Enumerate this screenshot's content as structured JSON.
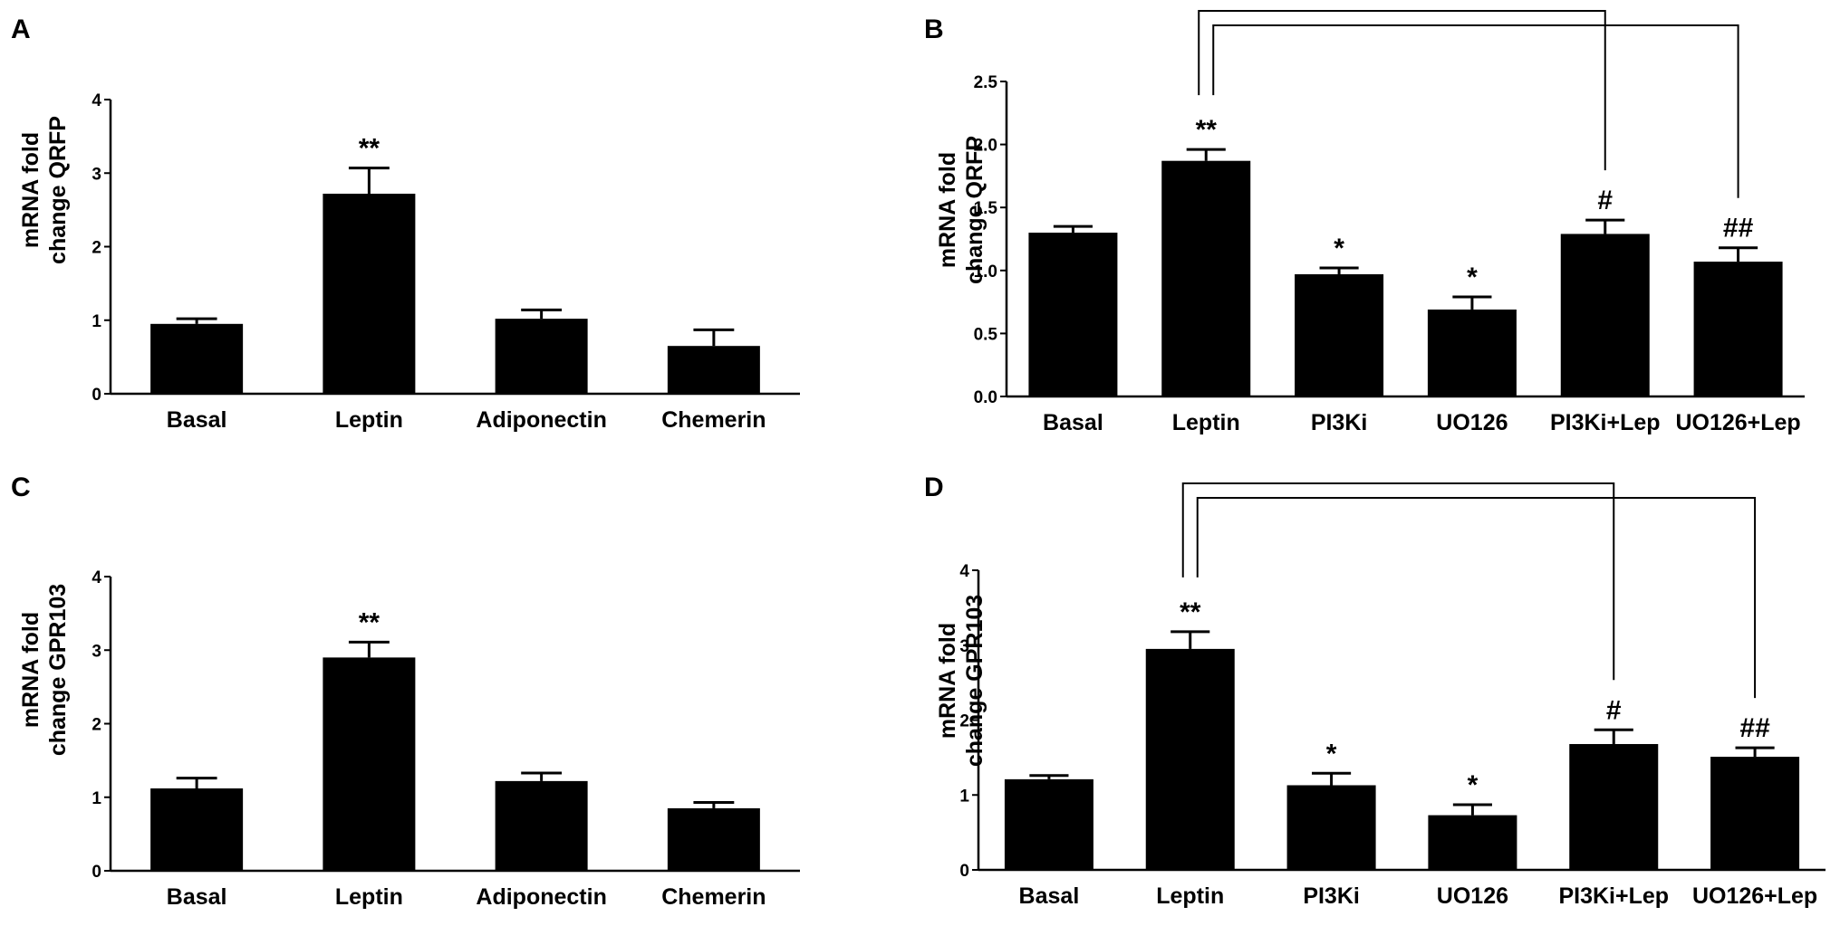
{
  "chart_data": [
    {
      "panel": "A",
      "type": "bar",
      "ylabel_lines": [
        "mRNA fold",
        "change QRFP"
      ],
      "categories": [
        "Basal",
        "Leptin",
        "Adiponectin",
        "Chemerin"
      ],
      "values": [
        0.95,
        2.72,
        1.02,
        0.65
      ],
      "errors": [
        0.07,
        0.35,
        0.12,
        0.22
      ],
      "significance": [
        "",
        "**",
        "",
        ""
      ],
      "ylim": [
        0,
        4
      ],
      "yticks": [
        0,
        1,
        2,
        3,
        4
      ],
      "ytick_labels": [
        "0",
        "1",
        "2",
        "3",
        "4"
      ],
      "brackets": []
    },
    {
      "panel": "B",
      "type": "bar",
      "ylabel_lines": [
        "mRNA fold",
        "change QRFP"
      ],
      "categories": [
        "Basal",
        "Leptin",
        "PI3Ki",
        "UO126",
        "PI3Ki+Lep",
        "UO126+Lep"
      ],
      "values": [
        1.3,
        1.87,
        0.97,
        0.69,
        1.29,
        1.07
      ],
      "errors": [
        0.05,
        0.09,
        0.05,
        0.1,
        0.11,
        0.11
      ],
      "significance": [
        "",
        "**",
        "*",
        "*",
        "#",
        "##"
      ],
      "ylim": [
        0,
        2.5
      ],
      "yticks": [
        0,
        0.5,
        1.0,
        1.5,
        2.0,
        2.5
      ],
      "ytick_labels": [
        "0.0",
        "0.5",
        "1.0",
        "1.5",
        "2.0",
        "2.5"
      ],
      "brackets": [
        {
          "from": 1,
          "to": 4
        },
        {
          "from": 1,
          "to": 5
        }
      ]
    },
    {
      "panel": "C",
      "type": "bar",
      "ylabel_lines": [
        "mRNA fold",
        "change GPR103"
      ],
      "categories": [
        "Basal",
        "Leptin",
        "Adiponectin",
        "Chemerin"
      ],
      "values": [
        1.12,
        2.9,
        1.22,
        0.85
      ],
      "errors": [
        0.14,
        0.21,
        0.11,
        0.08
      ],
      "significance": [
        "",
        "**",
        "",
        ""
      ],
      "ylim": [
        0,
        4
      ],
      "yticks": [
        0,
        1,
        2,
        3,
        4
      ],
      "ytick_labels": [
        "0",
        "1",
        "2",
        "3",
        "4"
      ],
      "brackets": []
    },
    {
      "panel": "D",
      "type": "bar",
      "ylabel_lines": [
        "mRNA fold",
        "change GPR103"
      ],
      "categories": [
        "Basal",
        "Leptin",
        "PI3Ki",
        "UO126",
        "PI3Ki+Lep",
        "UO126+Lep"
      ],
      "values": [
        1.21,
        2.95,
        1.13,
        0.73,
        1.68,
        1.51
      ],
      "errors": [
        0.05,
        0.23,
        0.16,
        0.14,
        0.19,
        0.12
      ],
      "significance": [
        "",
        "**",
        "*",
        "*",
        "#",
        "##"
      ],
      "ylim": [
        0,
        4
      ],
      "yticks": [
        0,
        1,
        2,
        3,
        4
      ],
      "ytick_labels": [
        "0",
        "1",
        "2",
        "3",
        "4"
      ],
      "brackets": [
        {
          "from": 1,
          "to": 4
        },
        {
          "from": 1,
          "to": 5
        }
      ]
    }
  ]
}
